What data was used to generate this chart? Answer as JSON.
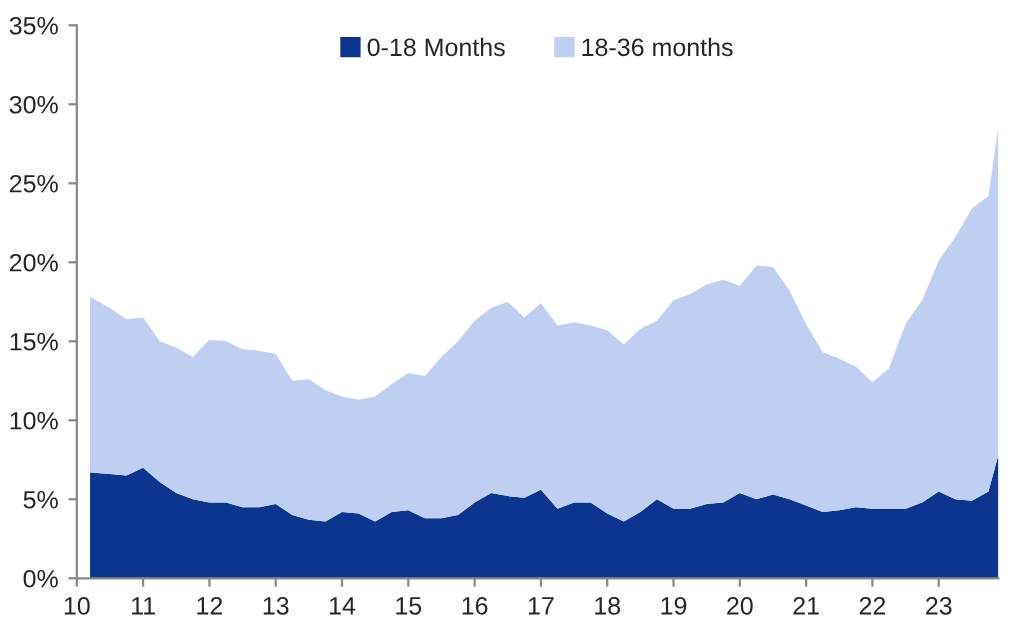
{
  "chart_data": {
    "type": "area",
    "stacked": true,
    "legend": "top",
    "grid": false,
    "x": [
      10.2,
      10.5,
      10.75,
      11,
      11.25,
      11.5,
      11.75,
      12,
      12.25,
      12.5,
      12.75,
      13,
      13.25,
      13.5,
      13.75,
      14,
      14.25,
      14.5,
      14.75,
      15,
      15.25,
      15.5,
      15.75,
      16,
      16.25,
      16.5,
      16.75,
      17,
      17.25,
      17.5,
      17.75,
      18,
      18.25,
      18.5,
      18.75,
      19,
      19.25,
      19.5,
      19.75,
      20,
      20.25,
      20.5,
      20.75,
      21,
      21.25,
      21.5,
      21.75,
      22,
      22.25,
      22.5,
      22.75,
      23,
      23.25,
      23.5,
      23.75,
      23.9
    ],
    "series": [
      {
        "name": "0-18 Months",
        "color": "#0c3590",
        "values": [
          6.7,
          6.6,
          6.5,
          7.0,
          6.1,
          5.4,
          5.0,
          4.8,
          4.8,
          4.5,
          4.5,
          4.7,
          4.0,
          3.7,
          3.6,
          4.2,
          4.1,
          3.6,
          4.2,
          4.3,
          3.8,
          3.8,
          4.0,
          4.8,
          5.4,
          5.2,
          5.1,
          5.6,
          4.4,
          4.8,
          4.8,
          4.1,
          3.6,
          4.2,
          5.0,
          4.4,
          4.4,
          4.7,
          4.8,
          5.4,
          5.0,
          5.3,
          5.0,
          4.6,
          4.2,
          4.3,
          4.5,
          4.4,
          4.4,
          4.4,
          4.8,
          5.5,
          5.0,
          4.9,
          5.5,
          7.8
        ]
      },
      {
        "name": "18-36 months",
        "color": "#bfcff2",
        "values": [
          11.1,
          10.5,
          9.9,
          9.5,
          8.9,
          9.2,
          9.0,
          10.3,
          10.2,
          10.0,
          9.9,
          9.5,
          8.5,
          8.9,
          8.3,
          7.3,
          7.2,
          7.9,
          8.1,
          8.7,
          9.0,
          10.2,
          11.0,
          11.5,
          11.7,
          12.3,
          11.4,
          11.8,
          11.6,
          11.4,
          11.2,
          11.6,
          11.2,
          11.6,
          11.3,
          13.2,
          13.6,
          13.9,
          14.1,
          13.1,
          14.8,
          14.4,
          13.2,
          11.5,
          10.1,
          9.6,
          8.9,
          8.0,
          8.9,
          11.7,
          12.8,
          14.6,
          16.6,
          18.5,
          18.7,
          20.8
        ]
      }
    ],
    "xlim": [
      10,
      23.9
    ],
    "xticks": [
      10,
      11,
      12,
      13,
      14,
      15,
      16,
      17,
      18,
      19,
      20,
      21,
      22,
      23
    ],
    "ylim": [
      0,
      35
    ],
    "yticks": [
      {
        "value": 0,
        "label": "0%"
      },
      {
        "value": 5,
        "label": "5%"
      },
      {
        "value": 10,
        "label": "10%"
      },
      {
        "value": 15,
        "label": "15%"
      },
      {
        "value": 20,
        "label": "20%"
      },
      {
        "value": 25,
        "label": "25%"
      },
      {
        "value": 30,
        "label": "30%"
      },
      {
        "value": 35,
        "label": "35%"
      }
    ]
  }
}
